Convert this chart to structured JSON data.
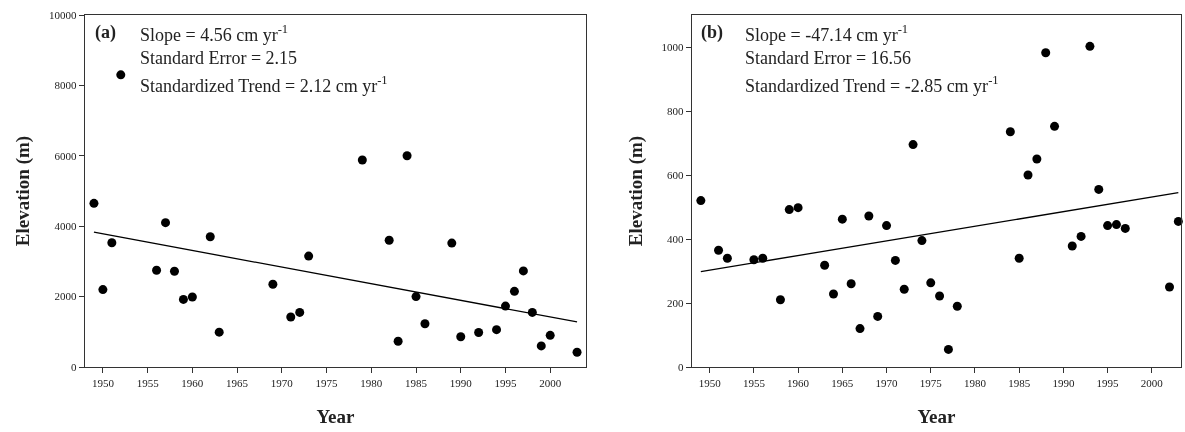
{
  "chart_data": [
    {
      "type": "scatter",
      "xlabel": "Year",
      "ylabel": "Elevation (m)",
      "xlim": [
        1948,
        2004
      ],
      "xticks": [
        1950,
        1955,
        1960,
        1965,
        1970,
        1975,
        1980,
        1985,
        1990,
        1995,
        2000
      ],
      "ylim": [
        0,
        10000
      ],
      "yticks": [
        0,
        2000,
        4000,
        6000,
        8000,
        10000
      ],
      "grid": false,
      "legend": false,
      "annotations": [
        "(a)",
        "Slope = 4.56 cm yr$^{-1}$",
        "Standard Error = 2.15",
        "Standardized Trend = 2.12 cm yr$^{-1}$"
      ],
      "series": [
        {
          "color": "#000000",
          "marker": "circle",
          "x": [
            1949,
            1950,
            1951,
            1952,
            1956,
            1957,
            1958,
            1959,
            1960,
            1962,
            1963,
            1969,
            1971,
            1972,
            1973,
            1979,
            1982,
            1983,
            1984,
            1985,
            1986,
            1989,
            1990,
            1992,
            1994,
            1995,
            1996,
            1997,
            1998,
            1999,
            2000,
            2003
          ],
          "values": [
            4650,
            2200,
            3530,
            8300,
            2750,
            4100,
            2720,
            1920,
            1990,
            3700,
            990,
            2350,
            1420,
            1550,
            3150,
            5880,
            3600,
            730,
            6000,
            2000,
            1230,
            3520,
            860,
            980,
            1060,
            1730,
            2150,
            2730,
            1550,
            600,
            900,
            420
          ]
        },
        {
          "type": "line",
          "color": "#000000",
          "marker": "none",
          "line_style": "solid",
          "x": [
            1949,
            2003
          ],
          "values": [
            3830,
            1280
          ]
        }
      ]
    },
    {
      "type": "scatter",
      "xlabel": "Year",
      "ylabel": "Elevation (m)",
      "xlim": [
        1948,
        2003.3
      ],
      "xticks": [
        1950,
        1955,
        1960,
        1965,
        1970,
        1975,
        1980,
        1985,
        1990,
        1995,
        2000
      ],
      "ylim": [
        0,
        1100
      ],
      "yticks": [
        0,
        200,
        400,
        600,
        800,
        1000
      ],
      "grid": false,
      "legend": false,
      "annotations": [
        "(b)",
        "Slope = -47.14 cm yr$^{-1}$",
        "Standard Error = 16.56",
        "Standardized Trend = -2.85 cm yr$^{-1}$"
      ],
      "series": [
        {
          "color": "#000000",
          "marker": "circle",
          "x": [
            1949,
            1951,
            1952,
            1955,
            1956,
            1958,
            1959,
            1960,
            1963,
            1964,
            1965,
            1966,
            1967,
            1968,
            1969,
            1970,
            1971,
            1972,
            1973,
            1974,
            1975,
            1976,
            1977,
            1978,
            1984,
            1985,
            1986,
            1987,
            1988,
            1989,
            1991,
            1992,
            1993,
            1994,
            1995,
            1996,
            1997,
            2002,
            2003
          ],
          "values": [
            520,
            365,
            340,
            335,
            340,
            210,
            492,
            498,
            318,
            228,
            462,
            260,
            120,
            472,
            158,
            442,
            333,
            243,
            695,
            395,
            263,
            222,
            55,
            190,
            735,
            340,
            600,
            650,
            982,
            752,
            378,
            408,
            1002,
            555,
            442,
            445,
            433,
            250,
            455
          ]
        },
        {
          "type": "line",
          "color": "#000000",
          "marker": "none",
          "line_style": "solid",
          "x": [
            1949,
            2003
          ],
          "values": [
            298,
            545
          ]
        }
      ]
    }
  ]
}
